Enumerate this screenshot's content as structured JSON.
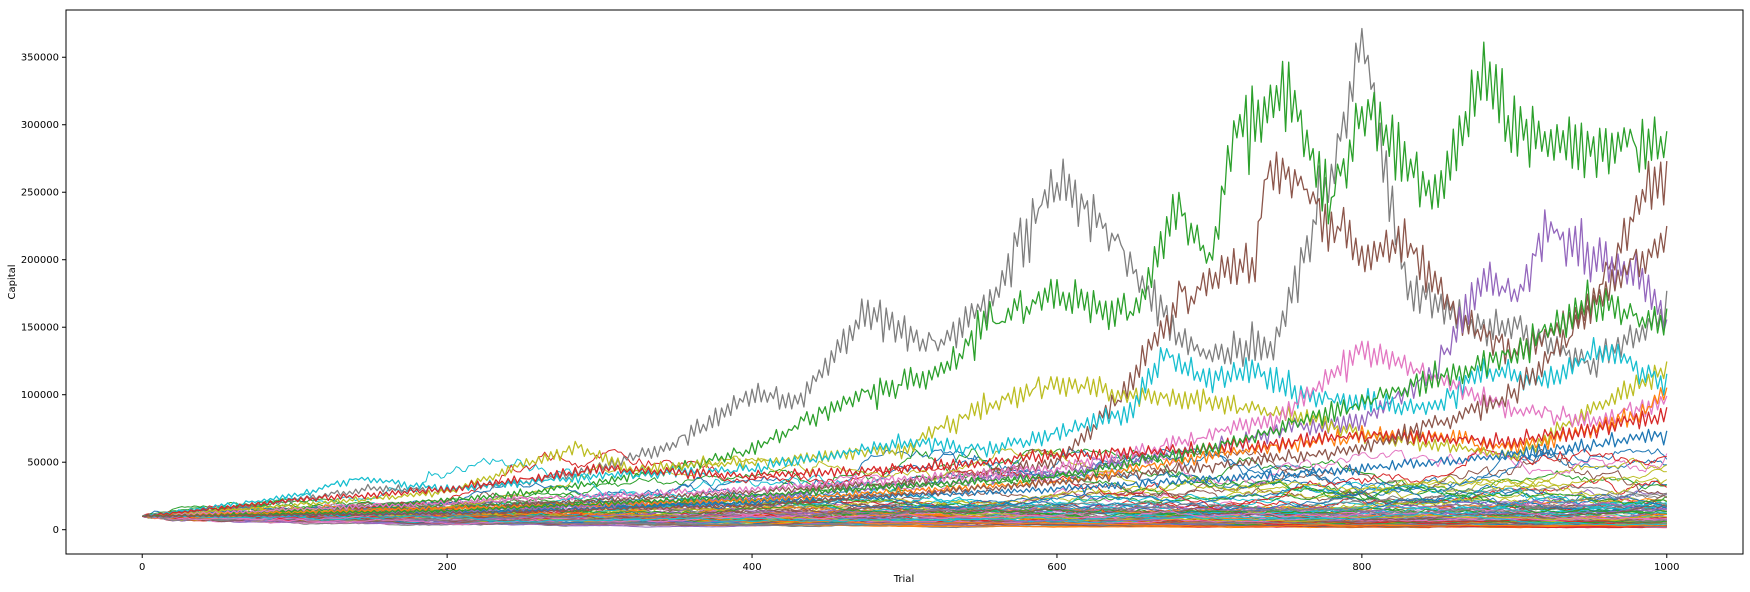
{
  "chart_data": {
    "type": "line",
    "title": "",
    "xlabel": "Trial",
    "ylabel": "Capital",
    "xlim": [
      -50,
      1050
    ],
    "ylim": [
      -18000,
      385000
    ],
    "x_ticks": [
      0,
      200,
      400,
      600,
      800,
      1000
    ],
    "y_ticks": [
      0,
      50000,
      100000,
      150000,
      200000,
      250000,
      300000,
      350000
    ],
    "grid": false,
    "legend": "none",
    "background_series_count": 90,
    "background_seed": 7,
    "palette": [
      "#1f77b4",
      "#ff7f0e",
      "#2ca02c",
      "#d62728",
      "#9467bd",
      "#8c564b",
      "#e377c2",
      "#7f7f7f",
      "#bcbd22",
      "#17becf"
    ],
    "series": [
      {
        "color": "#7f7f7f",
        "x": [
          0,
          50,
          100,
          150,
          200,
          250,
          300,
          350,
          400,
          430,
          475,
          520,
          560,
          600,
          640,
          680,
          700,
          740,
          780,
          800,
          830,
          870,
          900,
          950,
          1000
        ],
        "y": [
          10000,
          14000,
          22000,
          30000,
          30000,
          35000,
          45000,
          65000,
          100000,
          95000,
          160000,
          135000,
          175000,
          260000,
          215000,
          140000,
          130000,
          135000,
          260000,
          360000,
          180000,
          150000,
          150000,
          120000,
          160000
        ]
      },
      {
        "color": "#2ca02c",
        "x": [
          0,
          50,
          100,
          150,
          200,
          250,
          300,
          350,
          400,
          450,
          500,
          520,
          560,
          600,
          620,
          650,
          680,
          700,
          720,
          750,
          780,
          800,
          850,
          880,
          900,
          950,
          1000
        ],
        "y": [
          10000,
          12000,
          14000,
          18000,
          22000,
          27000,
          35000,
          45000,
          60000,
          90000,
          110000,
          115000,
          155000,
          175000,
          165000,
          160000,
          235000,
          200000,
          310000,
          320000,
          240000,
          310000,
          250000,
          340000,
          300000,
          280000,
          290000
        ]
      },
      {
        "color": "#8c564b",
        "x": [
          0,
          100,
          200,
          300,
          400,
          500,
          600,
          640,
          680,
          700,
          730,
          740,
          760,
          780,
          800,
          830,
          860,
          900,
          950,
          980,
          1000
        ],
        "y": [
          10000,
          12000,
          16000,
          22000,
          28000,
          35000,
          50000,
          95000,
          170000,
          185000,
          200000,
          275000,
          250000,
          230000,
          200000,
          215000,
          160000,
          130000,
          160000,
          240000,
          265000
        ]
      },
      {
        "color": "#9467bd",
        "x": [
          0,
          100,
          200,
          300,
          400,
          500,
          600,
          700,
          750,
          800,
          850,
          880,
          900,
          925,
          950,
          980,
          1000
        ],
        "y": [
          10000,
          11000,
          13000,
          18000,
          24000,
          32000,
          42000,
          60000,
          75000,
          80000,
          120000,
          190000,
          170000,
          225000,
          200000,
          190000,
          150000
        ]
      },
      {
        "color": "#bcbd22",
        "x": [
          0,
          100,
          200,
          260,
          285,
          320,
          400,
          500,
          540,
          560,
          600,
          640,
          700,
          760,
          800,
          900,
          1000
        ],
        "y": [
          10000,
          18000,
          28000,
          52000,
          62000,
          45000,
          50000,
          60000,
          85000,
          95000,
          110000,
          100000,
          95000,
          85000,
          70000,
          55000,
          120000
        ]
      },
      {
        "color": "#17becf",
        "x": [
          0,
          100,
          140,
          200,
          300,
          400,
          500,
          550,
          600,
          650,
          670,
          700,
          730,
          760,
          800,
          850,
          880,
          920,
          960,
          1000
        ],
        "y": [
          10000,
          25000,
          38000,
          30000,
          40000,
          45000,
          65000,
          60000,
          70000,
          90000,
          130000,
          110000,
          120000,
          100000,
          95000,
          90000,
          120000,
          110000,
          135000,
          105000
        ]
      },
      {
        "color": "#e377c2",
        "x": [
          0,
          200,
          400,
          600,
          700,
          750,
          800,
          850,
          900,
          950,
          1000
        ],
        "y": [
          10000,
          20000,
          30000,
          45000,
          70000,
          85000,
          135000,
          110000,
          90000,
          80000,
          95000
        ]
      },
      {
        "color": "#ff7f0e",
        "x": [
          0,
          200,
          400,
          600,
          700,
          800,
          850,
          900,
          950,
          980,
          1000
        ],
        "y": [
          10000,
          16000,
          22000,
          35000,
          55000,
          70000,
          70000,
          60000,
          75000,
          85000,
          100000
        ]
      },
      {
        "color": "#d62728",
        "x": [
          0,
          100,
          200,
          300,
          400,
          500,
          600,
          700,
          800,
          900,
          1000
        ],
        "y": [
          10000,
          22000,
          30000,
          45000,
          40000,
          45000,
          55000,
          60000,
          70000,
          65000,
          85000
        ]
      },
      {
        "color": "#1f77b4",
        "x": [
          0,
          200,
          400,
          600,
          800,
          900,
          1000
        ],
        "y": [
          10000,
          12000,
          20000,
          30000,
          45000,
          55000,
          70000
        ]
      },
      {
        "color": "#2ca02c",
        "x": [
          0,
          200,
          400,
          600,
          700,
          800,
          900,
          950,
          1000
        ],
        "y": [
          10000,
          14000,
          25000,
          40000,
          60000,
          95000,
          130000,
          170000,
          150000
        ]
      },
      {
        "color": "#8c564b",
        "x": [
          0,
          200,
          400,
          600,
          800,
          900,
          980,
          1000
        ],
        "y": [
          10000,
          12000,
          18000,
          35000,
          60000,
          100000,
          200000,
          210000
        ]
      }
    ]
  }
}
